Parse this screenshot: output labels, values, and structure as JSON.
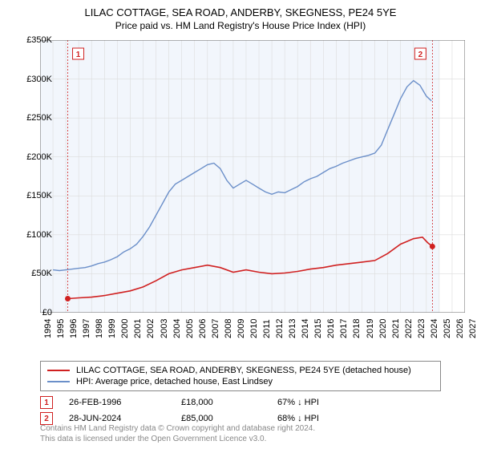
{
  "title": "LILAC COTTAGE, SEA ROAD, ANDERBY, SKEGNESS, PE24 5YE",
  "subtitle": "Price paid vs. HM Land Registry's House Price Index (HPI)",
  "chart": {
    "type": "line",
    "background_color": "#f2f6fc",
    "background_white": "#ffffff",
    "plot_border_color": "#666666",
    "grid_color": "#dcdcdc",
    "x_years": [
      1994,
      1995,
      1996,
      1997,
      1998,
      1999,
      2000,
      2001,
      2002,
      2003,
      2004,
      2005,
      2006,
      2007,
      2008,
      2009,
      2010,
      2011,
      2012,
      2013,
      2014,
      2015,
      2016,
      2017,
      2018,
      2019,
      2020,
      2021,
      2022,
      2023,
      2024,
      2025,
      2026,
      2027
    ],
    "x_start": 1994,
    "x_end": 2027,
    "ylim": [
      0,
      350000
    ],
    "ytick_step": 50000,
    "yticks": [
      "£0",
      "£50K",
      "£100K",
      "£150K",
      "£200K",
      "£250K",
      "£300K",
      "£350K"
    ],
    "series": [
      {
        "name": "hpi",
        "label": "HPI: Average price, detached house, East Lindsey",
        "color": "#6b8fc9",
        "width": 1.4,
        "data": [
          [
            1995.0,
            55000
          ],
          [
            1995.5,
            54000
          ],
          [
            1996.0,
            55000
          ],
          [
            1996.5,
            56000
          ],
          [
            1997.0,
            57000
          ],
          [
            1997.5,
            58000
          ],
          [
            1998.0,
            60000
          ],
          [
            1998.5,
            63000
          ],
          [
            1999.0,
            65000
          ],
          [
            1999.5,
            68000
          ],
          [
            2000.0,
            72000
          ],
          [
            2000.5,
            78000
          ],
          [
            2001.0,
            82000
          ],
          [
            2001.5,
            88000
          ],
          [
            2002.0,
            98000
          ],
          [
            2002.5,
            110000
          ],
          [
            2003.0,
            125000
          ],
          [
            2003.5,
            140000
          ],
          [
            2004.0,
            155000
          ],
          [
            2004.5,
            165000
          ],
          [
            2005.0,
            170000
          ],
          [
            2005.5,
            175000
          ],
          [
            2006.0,
            180000
          ],
          [
            2006.5,
            185000
          ],
          [
            2007.0,
            190000
          ],
          [
            2007.5,
            192000
          ],
          [
            2008.0,
            185000
          ],
          [
            2008.5,
            170000
          ],
          [
            2009.0,
            160000
          ],
          [
            2009.5,
            165000
          ],
          [
            2010.0,
            170000
          ],
          [
            2010.5,
            165000
          ],
          [
            2011.0,
            160000
          ],
          [
            2011.5,
            155000
          ],
          [
            2012.0,
            152000
          ],
          [
            2012.5,
            155000
          ],
          [
            2013.0,
            154000
          ],
          [
            2013.5,
            158000
          ],
          [
            2014.0,
            162000
          ],
          [
            2014.5,
            168000
          ],
          [
            2015.0,
            172000
          ],
          [
            2015.5,
            175000
          ],
          [
            2016.0,
            180000
          ],
          [
            2016.5,
            185000
          ],
          [
            2017.0,
            188000
          ],
          [
            2017.5,
            192000
          ],
          [
            2018.0,
            195000
          ],
          [
            2018.5,
            198000
          ],
          [
            2019.0,
            200000
          ],
          [
            2019.5,
            202000
          ],
          [
            2020.0,
            205000
          ],
          [
            2020.5,
            215000
          ],
          [
            2021.0,
            235000
          ],
          [
            2021.5,
            255000
          ],
          [
            2022.0,
            275000
          ],
          [
            2022.5,
            290000
          ],
          [
            2023.0,
            298000
          ],
          [
            2023.5,
            292000
          ],
          [
            2024.0,
            278000
          ],
          [
            2024.4,
            272000
          ]
        ]
      },
      {
        "name": "property",
        "label": "LILAC COTTAGE, SEA ROAD, ANDERBY, SKEGNESS, PE24 5YE (detached house)",
        "color": "#d02020",
        "width": 1.6,
        "data": [
          [
            1996.15,
            18000
          ],
          [
            1997.0,
            19000
          ],
          [
            1998.0,
            20000
          ],
          [
            1999.0,
            22000
          ],
          [
            2000.0,
            25000
          ],
          [
            2001.0,
            28000
          ],
          [
            2002.0,
            33000
          ],
          [
            2003.0,
            41000
          ],
          [
            2004.0,
            50000
          ],
          [
            2005.0,
            55000
          ],
          [
            2006.0,
            58000
          ],
          [
            2007.0,
            61000
          ],
          [
            2008.0,
            58000
          ],
          [
            2009.0,
            52000
          ],
          [
            2010.0,
            55000
          ],
          [
            2011.0,
            52000
          ],
          [
            2012.0,
            50000
          ],
          [
            2013.0,
            51000
          ],
          [
            2014.0,
            53000
          ],
          [
            2015.0,
            56000
          ],
          [
            2016.0,
            58000
          ],
          [
            2017.0,
            61000
          ],
          [
            2018.0,
            63000
          ],
          [
            2019.0,
            65000
          ],
          [
            2020.0,
            67000
          ],
          [
            2021.0,
            76000
          ],
          [
            2022.0,
            88000
          ],
          [
            2023.0,
            95000
          ],
          [
            2023.7,
            97000
          ],
          [
            2024.1,
            90000
          ],
          [
            2024.47,
            85000
          ]
        ]
      }
    ],
    "markers": [
      {
        "n": "1",
        "x": 1996.15,
        "y": 18000,
        "color": "#d02020",
        "date": "26-FEB-1996",
        "price": "£18,000",
        "pct": "67% ↓ HPI",
        "line_color": "#d02020"
      },
      {
        "n": "2",
        "x": 2024.47,
        "y": 85000,
        "color": "#d02020",
        "date": "28-JUN-2024",
        "price": "£85,000",
        "pct": "68% ↓ HPI",
        "line_color": "#d02020"
      }
    ]
  },
  "legend_border": "#888888",
  "attribution_line1": "Contains HM Land Registry data © Crown copyright and database right 2024.",
  "attribution_line2": "This data is licensed under the Open Government Licence v3.0."
}
